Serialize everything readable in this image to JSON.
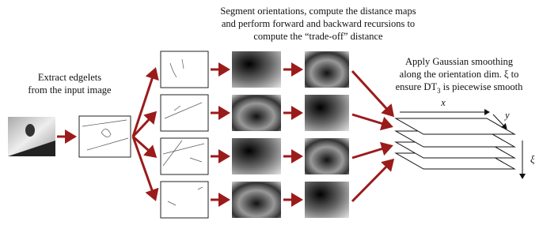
{
  "top_caption": {
    "lines": [
      "Segment orientations, compute the distance maps",
      "and perform forward and backward recursions to",
      "compute the “trade-off” distance"
    ]
  },
  "left_caption": {
    "lines": [
      "Extract edgelets",
      "from the input image"
    ]
  },
  "right_caption": {
    "lines": [
      "Apply Gaussian smoothing",
      "along the orientation dim. ξ to"
    ],
    "last_line": {
      "before": "ensure DT",
      "subscript": "3",
      "after": " is piecewise smooth"
    }
  },
  "axes": {
    "x": "x",
    "y": "y",
    "z": "ξ"
  }
}
